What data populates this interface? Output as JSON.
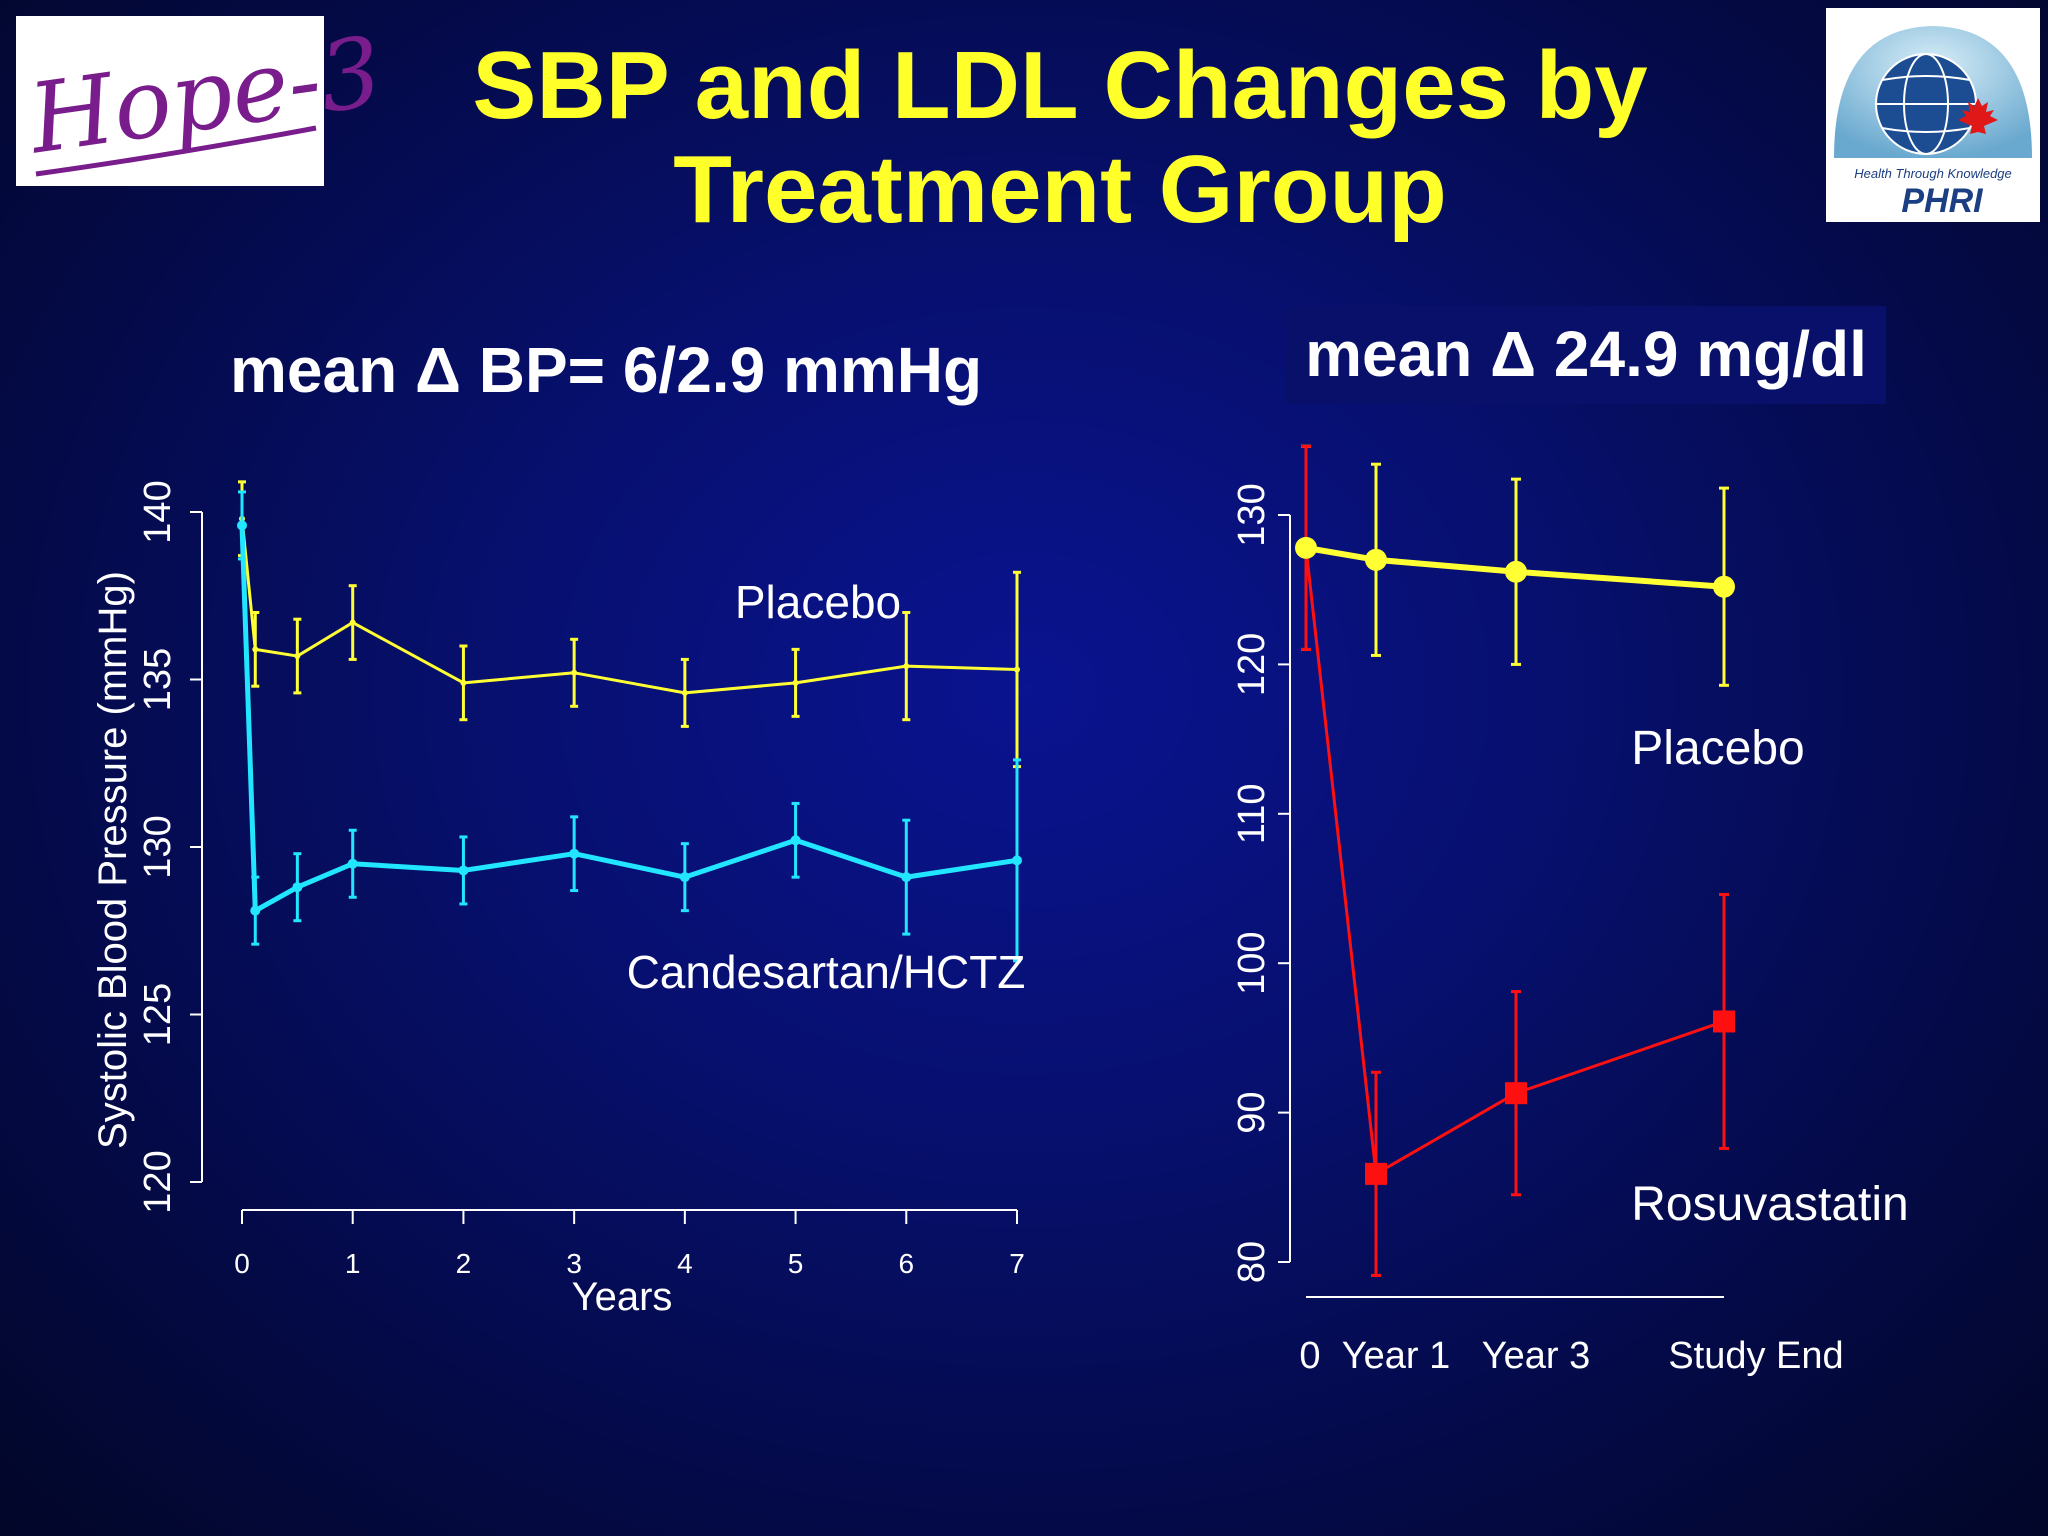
{
  "slide": {
    "title_line1": "SBP and LDL Changes by",
    "title_line2": "Treatment Group",
    "logo_left_text": "Hope-3",
    "logo_right_tagline": "Health Through Knowledge",
    "logo_right_text": "PHRI"
  },
  "colors": {
    "title": "#ffff2a",
    "placebo": "#ffff33",
    "candesartan": "#22e6ff",
    "rosuvastatin": "#ff1010",
    "axis": "#ffffff"
  },
  "chart_data": [
    {
      "id": "sbp",
      "type": "line",
      "subtitle": "mean Δ BP= 6/2.9 mmHg",
      "xlabel": "Years",
      "ylabel": "Systolic Blood Pressure (mmHg)",
      "xlim": [
        0,
        7
      ],
      "ylim": [
        120,
        140
      ],
      "x_ticks": [
        "0",
        "1",
        "2",
        "3",
        "4",
        "5",
        "6",
        "7"
      ],
      "y_ticks": [
        "120",
        "125",
        "130",
        "135",
        "140"
      ],
      "series": [
        {
          "name": "Placebo",
          "label": "Placebo",
          "color": "#ffff33",
          "x": [
            0,
            0.12,
            0.5,
            1,
            2,
            3,
            4,
            5,
            6,
            7
          ],
          "values": [
            139.8,
            135.9,
            135.7,
            136.7,
            134.9,
            135.2,
            134.6,
            134.9,
            135.4,
            135.3
          ],
          "err": [
            1.1,
            1.1,
            1.1,
            1.1,
            1.1,
            1.0,
            1.0,
            1.0,
            1.6,
            2.9
          ]
        },
        {
          "name": "Candesartan/HCTZ",
          "label": "Candesartan/HCTZ",
          "color": "#22e6ff",
          "x": [
            0,
            0.12,
            0.5,
            1,
            2,
            3,
            4,
            5,
            6,
            7
          ],
          "values": [
            139.6,
            128.1,
            128.8,
            129.5,
            129.3,
            129.8,
            129.1,
            130.2,
            129.1,
            129.6
          ],
          "err": [
            1.0,
            1.0,
            1.0,
            1.0,
            1.0,
            1.1,
            1.0,
            1.1,
            1.7,
            3.0
          ]
        }
      ]
    },
    {
      "id": "ldl",
      "type": "line",
      "subtitle": "mean Δ 24.9 mg/dl",
      "xlabel": "",
      "ylabel": "",
      "ylim": [
        80,
        130
      ],
      "categories": [
        "0",
        "Year 1",
        "Year 3",
        "Study End"
      ],
      "y_ticks": [
        "80",
        "90",
        "100",
        "110",
        "120",
        "130"
      ],
      "series": [
        {
          "name": "Placebo",
          "label": "Placebo",
          "color": "#ffff33",
          "values": [
            127.8,
            127.0,
            126.2,
            125.2
          ],
          "err": [
            6.8,
            6.4,
            6.2,
            6.6
          ]
        },
        {
          "name": "Rosuvastatin",
          "label": "Rosuvastatin",
          "color": "#ff1010",
          "values": [
            127.8,
            85.9,
            91.3,
            96.1
          ],
          "err": [
            6.8,
            6.8,
            6.8,
            8.5
          ]
        }
      ]
    }
  ]
}
